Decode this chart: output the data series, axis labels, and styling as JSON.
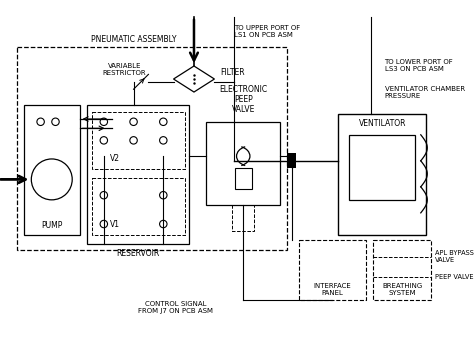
{
  "bg_color": "#ffffff",
  "line_color": "#000000",
  "labels": {
    "pneumatic_assembly": "PNEUMATIC ASSEMBLY",
    "variable_restrictor": "VARIABLE\nRESTRICTOR",
    "filter": "FILTER",
    "pump": "PUMP",
    "reservoir": "RESERVOIR",
    "v1": "V1",
    "v2": "V2",
    "electronic_peep": "ELECTRONIC\nPEEP\nVALVE",
    "ventilator": "VENTILATOR",
    "apl_bypass": "APL BYPASS\nVALVE",
    "peep_valve": "PEEP VALVE",
    "interface_panel": "INTERFACE\nPANEL",
    "breathing_system": "BREATHING\nSYSTEM",
    "upper_port": "TO UPPER PORT OF\nLS1 ON PCB ASM",
    "lower_port": "TO LOWER PORT OF\nLS3 ON PCB ASM",
    "ventilator_chamber": "VENTILATOR CHAMBER\nPRESSURE",
    "control_signal": "CONTROL SIGNAL\nFROM J7 ON PCB ASM"
  }
}
